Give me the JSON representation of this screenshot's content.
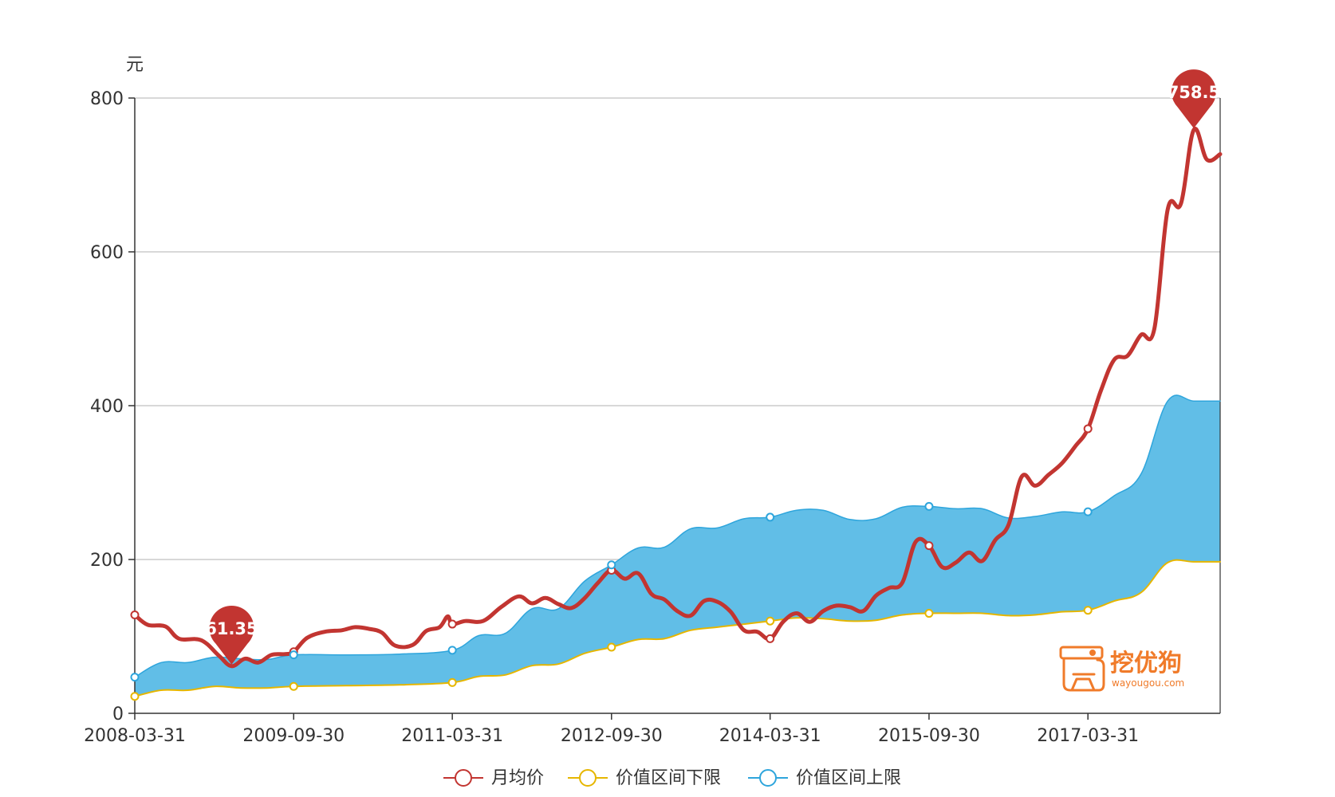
{
  "chart_data": {
    "type": "line",
    "yunit": "元",
    "ylim": [
      0,
      800
    ],
    "yticks": [
      0,
      200,
      400,
      600,
      800
    ],
    "xlim": [
      "2008-03-31",
      "2018-06-30"
    ],
    "xtick_labels": [
      "2008-03-31",
      "2009-09-30",
      "2011-03-31",
      "2012-09-30",
      "2014-03-31",
      "2015-09-30",
      "2017-03-31"
    ],
    "grid": true,
    "legend_position": "bottom",
    "colors": {
      "price": "#c23531",
      "lower": "#e6b600",
      "upper": "#2ea5dc",
      "band": "#61bee7",
      "grid": "#cccccc",
      "axis": "#333333"
    },
    "series": [
      {
        "name": "月均价",
        "points": [
          [
            "2008-03-31",
            128
          ],
          [
            "2008-05-15",
            115
          ],
          [
            "2008-07-15",
            113
          ],
          [
            "2008-08-31",
            97
          ],
          [
            "2008-11-15",
            95
          ],
          [
            "2009-01-15",
            75
          ],
          [
            "2009-02-28",
            61.35
          ],
          [
            "2009-04-15",
            71
          ],
          [
            "2009-05-31",
            66
          ],
          [
            "2009-07-15",
            76
          ],
          [
            "2009-08-31",
            77
          ],
          [
            "2009-09-30",
            80
          ],
          [
            "2009-11-15",
            98
          ],
          [
            "2010-01-15",
            106
          ],
          [
            "2010-03-15",
            108
          ],
          [
            "2010-04-30",
            112
          ],
          [
            "2010-06-15",
            110
          ],
          [
            "2010-07-31",
            105
          ],
          [
            "2010-09-15",
            88
          ],
          [
            "2010-11-15",
            89
          ],
          [
            "2010-12-31",
            107
          ],
          [
            "2011-02-15",
            112
          ],
          [
            "2011-03-15",
            126
          ],
          [
            "2011-03-31",
            116
          ],
          [
            "2011-05-15",
            120
          ],
          [
            "2011-07-15",
            120
          ],
          [
            "2011-09-15",
            138
          ],
          [
            "2011-11-15",
            152
          ],
          [
            "2011-12-31",
            143
          ],
          [
            "2012-02-15",
            150
          ],
          [
            "2012-03-31",
            142
          ],
          [
            "2012-05-15",
            137
          ],
          [
            "2012-06-30",
            150
          ],
          [
            "2012-08-15",
            170
          ],
          [
            "2012-09-30",
            186
          ],
          [
            "2012-11-15",
            175
          ],
          [
            "2012-12-31",
            182
          ],
          [
            "2013-02-15",
            155
          ],
          [
            "2013-03-31",
            148
          ],
          [
            "2013-05-15",
            133
          ],
          [
            "2013-06-30",
            127
          ],
          [
            "2013-08-15",
            146
          ],
          [
            "2013-09-30",
            145
          ],
          [
            "2013-11-15",
            132
          ],
          [
            "2013-12-31",
            108
          ],
          [
            "2014-02-15",
            106
          ],
          [
            "2014-03-31",
            97
          ],
          [
            "2014-05-15",
            119
          ],
          [
            "2014-06-30",
            130
          ],
          [
            "2014-08-15",
            119
          ],
          [
            "2014-09-30",
            133
          ],
          [
            "2014-11-15",
            140
          ],
          [
            "2014-12-31",
            138
          ],
          [
            "2015-02-15",
            133
          ],
          [
            "2015-03-31",
            153
          ],
          [
            "2015-05-15",
            163
          ],
          [
            "2015-06-30",
            170
          ],
          [
            "2015-08-15",
            223
          ],
          [
            "2015-09-30",
            218
          ],
          [
            "2015-11-15",
            190
          ],
          [
            "2015-12-31",
            196
          ],
          [
            "2016-02-15",
            209
          ],
          [
            "2016-03-31",
            198
          ],
          [
            "2016-05-15",
            225
          ],
          [
            "2016-06-30",
            245
          ],
          [
            "2016-08-15",
            308
          ],
          [
            "2016-09-30",
            296
          ],
          [
            "2016-11-15",
            310
          ],
          [
            "2016-12-31",
            325
          ],
          [
            "2017-02-15",
            347
          ],
          [
            "2017-03-31",
            370
          ],
          [
            "2017-05-15",
            420
          ],
          [
            "2017-06-30",
            460
          ],
          [
            "2017-08-15",
            465
          ],
          [
            "2017-09-30",
            492
          ],
          [
            "2017-11-15",
            500
          ],
          [
            "2017-12-31",
            655
          ],
          [
            "2018-02-15",
            663
          ],
          [
            "2018-03-31",
            758.5
          ],
          [
            "2018-05-15",
            720
          ],
          [
            "2018-06-30",
            727
          ]
        ]
      },
      {
        "name": "价值区间下限",
        "points": [
          [
            "2008-03-31",
            22
          ],
          [
            "2008-06-30",
            30
          ],
          [
            "2008-09-30",
            30
          ],
          [
            "2008-12-31",
            35
          ],
          [
            "2009-03-31",
            33
          ],
          [
            "2009-06-30",
            33
          ],
          [
            "2009-09-30",
            35
          ],
          [
            "2010-03-31",
            36
          ],
          [
            "2010-09-30",
            37
          ],
          [
            "2011-03-31",
            40
          ],
          [
            "2011-06-30",
            48
          ],
          [
            "2011-09-30",
            50
          ],
          [
            "2011-12-31",
            62
          ],
          [
            "2012-03-31",
            64
          ],
          [
            "2012-06-30",
            78
          ],
          [
            "2012-09-30",
            86
          ],
          [
            "2012-12-31",
            96
          ],
          [
            "2013-03-31",
            97
          ],
          [
            "2013-06-30",
            108
          ],
          [
            "2013-09-30",
            112
          ],
          [
            "2013-12-31",
            116
          ],
          [
            "2014-03-31",
            120
          ],
          [
            "2014-06-30",
            124
          ],
          [
            "2014-09-30",
            123
          ],
          [
            "2014-12-31",
            120
          ],
          [
            "2015-03-31",
            121
          ],
          [
            "2015-06-30",
            128
          ],
          [
            "2015-09-30",
            130
          ],
          [
            "2015-12-31",
            130
          ],
          [
            "2016-03-31",
            130
          ],
          [
            "2016-06-30",
            127
          ],
          [
            "2016-09-30",
            128
          ],
          [
            "2016-12-31",
            132
          ],
          [
            "2017-03-31",
            134
          ],
          [
            "2017-06-30",
            146
          ],
          [
            "2017-09-30",
            157
          ],
          [
            "2017-12-31",
            196
          ],
          [
            "2018-03-31",
            197
          ],
          [
            "2018-06-30",
            197
          ]
        ]
      },
      {
        "name": "价值区间上限",
        "points": [
          [
            "2008-03-31",
            47
          ],
          [
            "2008-06-30",
            66
          ],
          [
            "2008-09-30",
            66
          ],
          [
            "2008-12-31",
            73
          ],
          [
            "2009-03-31",
            71
          ],
          [
            "2009-06-30",
            70
          ],
          [
            "2009-09-30",
            76
          ],
          [
            "2010-03-31",
            76
          ],
          [
            "2010-09-30",
            77
          ],
          [
            "2011-03-31",
            82
          ],
          [
            "2011-06-30",
            101
          ],
          [
            "2011-09-30",
            104
          ],
          [
            "2011-12-31",
            136
          ],
          [
            "2012-03-31",
            136
          ],
          [
            "2012-06-30",
            172
          ],
          [
            "2012-09-30",
            193
          ],
          [
            "2012-12-31",
            215
          ],
          [
            "2013-03-31",
            216
          ],
          [
            "2013-06-30",
            240
          ],
          [
            "2013-09-30",
            241
          ],
          [
            "2013-12-31",
            253
          ],
          [
            "2014-03-31",
            255
          ],
          [
            "2014-06-30",
            264
          ],
          [
            "2014-09-30",
            264
          ],
          [
            "2014-12-31",
            252
          ],
          [
            "2015-03-31",
            253
          ],
          [
            "2015-06-30",
            268
          ],
          [
            "2015-09-30",
            269
          ],
          [
            "2015-12-31",
            266
          ],
          [
            "2016-03-31",
            266
          ],
          [
            "2016-06-30",
            254
          ],
          [
            "2016-09-30",
            256
          ],
          [
            "2016-12-31",
            262
          ],
          [
            "2017-03-31",
            262
          ],
          [
            "2017-06-30",
            283
          ],
          [
            "2017-09-30",
            311
          ],
          [
            "2017-12-31",
            406
          ],
          [
            "2018-03-31",
            406
          ],
          [
            "2018-06-30",
            406
          ]
        ]
      }
    ],
    "annotations": [
      {
        "series": "月均价",
        "type": "min",
        "x": "2009-02-28",
        "value": 61.35,
        "label": "61.35"
      },
      {
        "series": "月均价",
        "type": "max",
        "x": "2018-03-31",
        "value": 758.5,
        "label": "758.5"
      }
    ],
    "marker_dates": [
      "2008-03-31",
      "2009-09-30",
      "2011-03-31",
      "2012-09-30",
      "2014-03-31",
      "2015-09-30",
      "2017-03-31"
    ]
  },
  "logo": {
    "brand_name": "挖优狗",
    "brand_url": "wayougou.com"
  }
}
